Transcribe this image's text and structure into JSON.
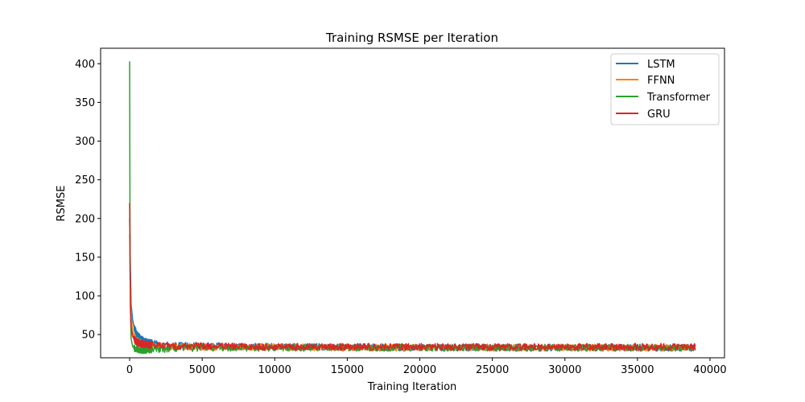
{
  "chart_data": {
    "type": "line",
    "title": "Training RSMSE per Iteration",
    "xlabel": "Training Iteration",
    "ylabel": "RSMSE",
    "xlim": [
      -2000,
      41000
    ],
    "ylim": [
      20,
      420
    ],
    "xticks": [
      0,
      5000,
      10000,
      15000,
      20000,
      25000,
      30000,
      35000,
      40000
    ],
    "yticks": [
      50,
      100,
      150,
      200,
      250,
      300,
      350,
      400
    ],
    "grid": false,
    "legend_position": "top-right",
    "series": [
      {
        "name": "LSTM",
        "color": "#1f77b4",
        "x": [
          0,
          50,
          100,
          200,
          300,
          500,
          800,
          1200,
          2000,
          3000,
          5000,
          10000,
          15000,
          20000,
          25000,
          30000,
          35000,
          39000
        ],
        "y": [
          200,
          140,
          90,
          70,
          60,
          50,
          44,
          40,
          37,
          36,
          35,
          34,
          34,
          33,
          33,
          33,
          33,
          33
        ]
      },
      {
        "name": "FFNN",
        "color": "#ff7f0e",
        "x": [
          0,
          50,
          100,
          200,
          300,
          500,
          800,
          1200,
          2000,
          3000,
          5000,
          10000,
          15000,
          20000,
          25000,
          30000,
          35000,
          39000
        ],
        "y": [
          180,
          110,
          75,
          55,
          48,
          42,
          38,
          36,
          35,
          34,
          34,
          34,
          33,
          33,
          33,
          33,
          33,
          33
        ]
      },
      {
        "name": "Transformer",
        "color": "#2ca02c",
        "x": [
          0,
          20,
          50,
          100,
          200,
          300,
          500,
          800,
          1200,
          2000,
          3000,
          5000,
          10000,
          15000,
          20000,
          25000,
          30000,
          35000,
          39000
        ],
        "y": [
          403,
          220,
          90,
          45,
          35,
          32,
          31,
          30,
          30,
          31,
          32,
          33,
          33,
          33,
          33,
          33,
          33,
          33,
          33
        ]
      },
      {
        "name": "GRU",
        "color": "#d62728",
        "x": [
          0,
          30,
          60,
          100,
          200,
          300,
          500,
          800,
          1200,
          2000,
          3000,
          5000,
          10000,
          15000,
          20000,
          25000,
          30000,
          35000,
          39000
        ],
        "y": [
          220,
          130,
          80,
          60,
          48,
          44,
          40,
          38,
          37,
          36,
          35,
          35,
          34,
          34,
          34,
          34,
          34,
          34,
          34
        ]
      }
    ]
  }
}
